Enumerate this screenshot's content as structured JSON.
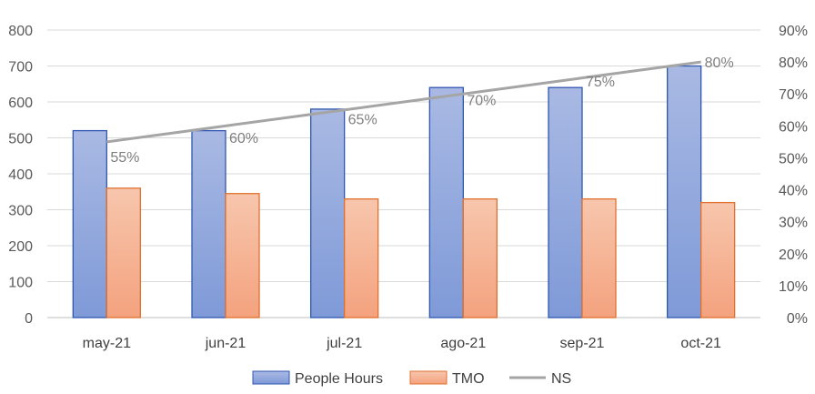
{
  "chart_data": {
    "type": "bar",
    "categories": [
      "may-21",
      "jun-21",
      "jul-21",
      "ago-21",
      "sep-21",
      "oct-21"
    ],
    "series": [
      {
        "name": "People Hours",
        "type": "bar",
        "axis": "left",
        "values": [
          520,
          520,
          580,
          640,
          640,
          700
        ]
      },
      {
        "name": "TMO",
        "type": "bar",
        "axis": "left",
        "values": [
          360,
          345,
          330,
          330,
          330,
          320
        ]
      },
      {
        "name": "NS",
        "type": "line",
        "axis": "right",
        "values": [
          55,
          60,
          65,
          70,
          75,
          80
        ],
        "data_labels": [
          "55%",
          "60%",
          "65%",
          "70%",
          "75%",
          "80%"
        ]
      }
    ],
    "ylim": [
      0,
      800
    ],
    "yticks": [
      "0",
      "100",
      "200",
      "300",
      "400",
      "500",
      "600",
      "700",
      "800"
    ],
    "y2lim": [
      0,
      90
    ],
    "y2ticks": [
      "0%",
      "10%",
      "20%",
      "30%",
      "40%",
      "50%",
      "60%",
      "70%",
      "80%",
      "90%"
    ],
    "grid": true,
    "legend": "bottom-center",
    "colors": {
      "people_hours_fill_top": "#a9b9e3",
      "people_hours_fill_bottom": "#7f9ad8",
      "people_hours_border": "#2f57b0",
      "tmo_fill_top": "#f7c6ad",
      "tmo_fill_bottom": "#f4a27e",
      "tmo_border": "#e0712f",
      "ns_line": "#a5a5a5",
      "grid": "#d9d9d9"
    }
  }
}
